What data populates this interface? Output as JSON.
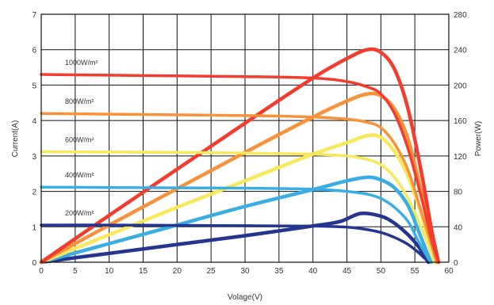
{
  "chart_data": {
    "type": "line",
    "xlabel": "Volage(V)",
    "ylabel_left": "Current(A)",
    "ylabel_right": "Power(W)",
    "xlim": [
      0,
      60
    ],
    "ylim_left": [
      0,
      7
    ],
    "ylim_right": [
      0,
      280
    ],
    "x_ticks": [
      "0",
      "5",
      "10",
      "15",
      "20",
      "25",
      "30",
      "35",
      "40",
      "45",
      "50",
      "55",
      "60"
    ],
    "y_left_ticks": [
      "0",
      "1",
      "2",
      "3",
      "4",
      "5",
      "6",
      "7"
    ],
    "y_right_ticks": [
      "0",
      "40",
      "80",
      "120",
      "160",
      "200",
      "240",
      "280"
    ],
    "grid": true,
    "series": [
      {
        "name": "1000W/m²",
        "color": "#f23c2e",
        "iv": [
          [
            0,
            5.3
          ],
          [
            10,
            5.28
          ],
          [
            20,
            5.26
          ],
          [
            30,
            5.24
          ],
          [
            40,
            5.2
          ],
          [
            45,
            5.1
          ],
          [
            48,
            4.95
          ],
          [
            50,
            4.75
          ],
          [
            52,
            4.2
          ],
          [
            54,
            3.2
          ],
          [
            56,
            1.8
          ],
          [
            57.5,
            0.6
          ],
          [
            58.5,
            0
          ]
        ],
        "pv": [
          [
            0,
            0
          ],
          [
            10,
            53
          ],
          [
            20,
            105
          ],
          [
            30,
            157
          ],
          [
            40,
            208
          ],
          [
            45,
            230
          ],
          [
            48,
            240
          ],
          [
            50,
            237
          ],
          [
            52,
            218
          ],
          [
            54,
            173
          ],
          [
            56,
            100
          ],
          [
            57.5,
            35
          ],
          [
            58.5,
            0
          ]
        ]
      },
      {
        "name": "800W/m²",
        "color": "#f7913a",
        "iv": [
          [
            0,
            4.2
          ],
          [
            10,
            4.18
          ],
          [
            20,
            4.16
          ],
          [
            30,
            4.14
          ],
          [
            40,
            4.1
          ],
          [
            45,
            4.04
          ],
          [
            48,
            3.95
          ],
          [
            50,
            3.8
          ],
          [
            52,
            3.35
          ],
          [
            54,
            2.6
          ],
          [
            56,
            1.4
          ],
          [
            57.5,
            0.45
          ],
          [
            58.2,
            0
          ]
        ],
        "pv": [
          [
            0,
            0
          ],
          [
            10,
            42
          ],
          [
            20,
            83
          ],
          [
            30,
            124
          ],
          [
            40,
            164
          ],
          [
            45,
            182
          ],
          [
            48,
            190
          ],
          [
            50,
            188
          ],
          [
            52,
            173
          ],
          [
            54,
            139
          ],
          [
            56,
            78
          ],
          [
            57.5,
            26
          ],
          [
            58.2,
            0
          ]
        ]
      },
      {
        "name": "600W/m²",
        "color": "#f8e85c",
        "iv": [
          [
            0,
            3.12
          ],
          [
            10,
            3.11
          ],
          [
            20,
            3.1
          ],
          [
            30,
            3.08
          ],
          [
            40,
            3.05
          ],
          [
            45,
            3.0
          ],
          [
            48,
            2.9
          ],
          [
            50,
            2.75
          ],
          [
            52,
            2.4
          ],
          [
            54,
            1.8
          ],
          [
            56,
            0.95
          ],
          [
            57.3,
            0.3
          ],
          [
            57.9,
            0
          ]
        ],
        "pv": [
          [
            0,
            0
          ],
          [
            10,
            31
          ],
          [
            20,
            62
          ],
          [
            30,
            92
          ],
          [
            40,
            122
          ],
          [
            45,
            135
          ],
          [
            48,
            143
          ],
          [
            50,
            141
          ],
          [
            52,
            125
          ],
          [
            54,
            97
          ],
          [
            56,
            53
          ],
          [
            57.3,
            17
          ],
          [
            57.9,
            0
          ]
        ]
      },
      {
        "name": "400W/m²",
        "color": "#3aaee3",
        "iv": [
          [
            0,
            2.12
          ],
          [
            10,
            2.11
          ],
          [
            20,
            2.1
          ],
          [
            30,
            2.09
          ],
          [
            40,
            2.06
          ],
          [
            45,
            2.0
          ],
          [
            48,
            1.92
          ],
          [
            50,
            1.8
          ],
          [
            52,
            1.55
          ],
          [
            54,
            1.15
          ],
          [
            55.5,
            0.6
          ],
          [
            57,
            0.1
          ],
          [
            57.4,
            0
          ]
        ],
        "pv": [
          [
            0,
            0
          ],
          [
            10,
            21
          ],
          [
            20,
            42
          ],
          [
            30,
            63
          ],
          [
            40,
            82
          ],
          [
            45,
            92
          ],
          [
            48,
            96
          ],
          [
            50,
            93
          ],
          [
            52,
            84
          ],
          [
            54,
            64
          ],
          [
            55.5,
            36
          ],
          [
            57,
            7
          ],
          [
            57.4,
            0
          ]
        ]
      },
      {
        "name": "200W/m²",
        "color": "#23358f",
        "iv": [
          [
            0,
            1.05
          ],
          [
            10,
            1.05
          ],
          [
            20,
            1.04
          ],
          [
            30,
            1.03
          ],
          [
            40,
            1.02
          ],
          [
            44,
            1.0
          ],
          [
            47,
            0.95
          ],
          [
            50,
            0.84
          ],
          [
            52,
            0.7
          ],
          [
            54,
            0.5
          ],
          [
            55.5,
            0.28
          ],
          [
            56.5,
            0.1
          ],
          [
            57,
            0
          ]
        ],
        "pv": [
          [
            0,
            0
          ],
          [
            10,
            10
          ],
          [
            20,
            20
          ],
          [
            30,
            30
          ],
          [
            40,
            41
          ],
          [
            44,
            46
          ],
          [
            47,
            55
          ],
          [
            50,
            52
          ],
          [
            52,
            44
          ],
          [
            54,
            31
          ],
          [
            55.5,
            18
          ],
          [
            56.5,
            6
          ],
          [
            57,
            0
          ]
        ]
      }
    ]
  }
}
